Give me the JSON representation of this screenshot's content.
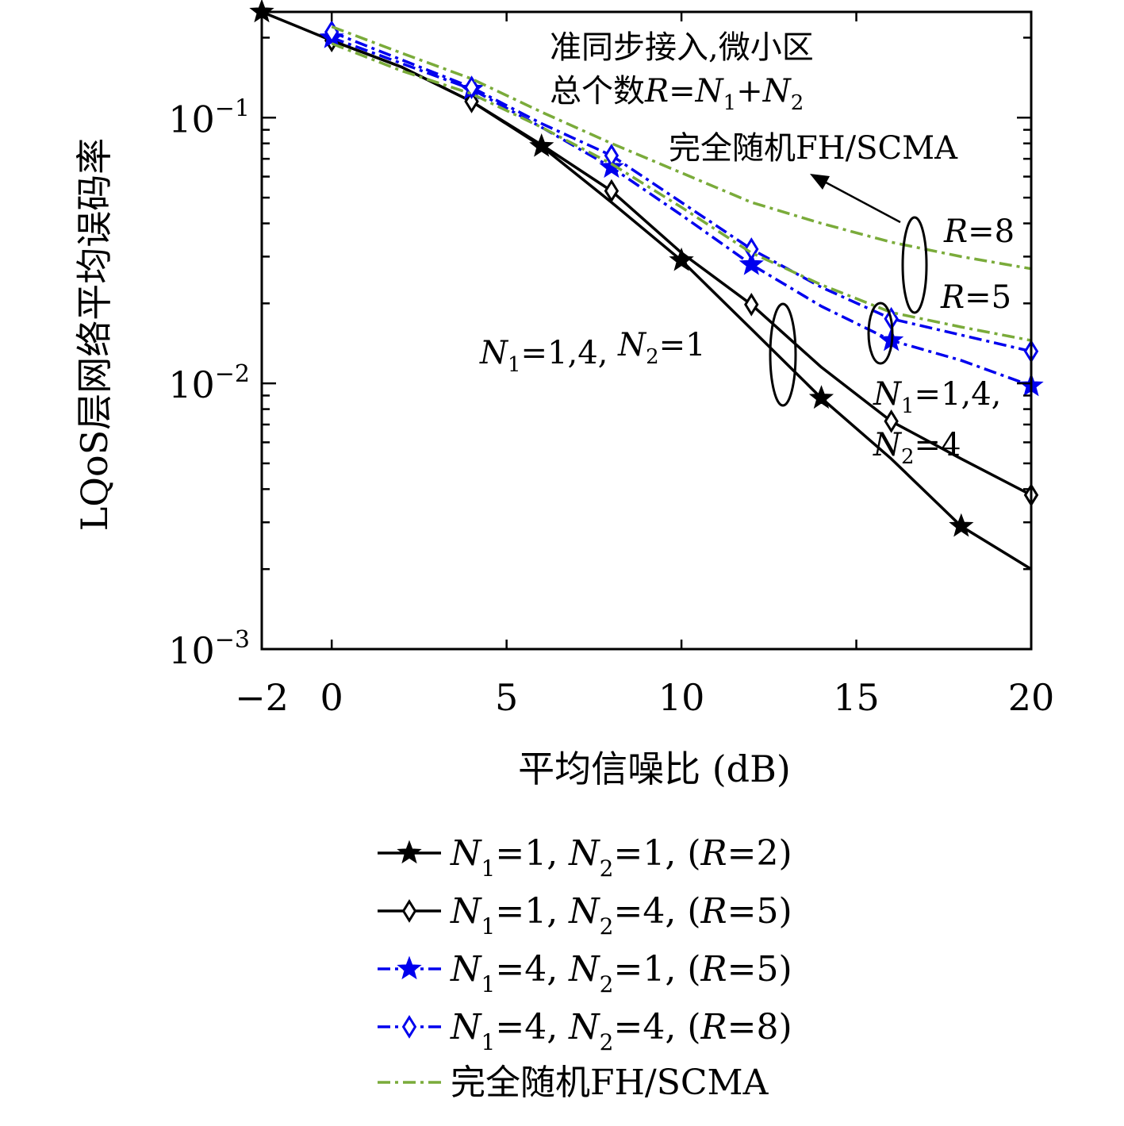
{
  "chart_data": {
    "type": "line",
    "xlabel": "平均信噪比 (dB)",
    "ylabel": "LQoS层网络平均误码率",
    "x_scale": "linear",
    "y_scale": "log",
    "xlim": [
      -2,
      20
    ],
    "ylim": [
      0.001,
      0.25
    ],
    "x_ticks": [
      {
        "value": -2,
        "label": "−2"
      },
      {
        "value": 0,
        "label": "0"
      },
      {
        "value": 5,
        "label": "5"
      },
      {
        "value": 10,
        "label": "10"
      },
      {
        "value": 15,
        "label": "15"
      },
      {
        "value": 20,
        "label": "20"
      }
    ],
    "y_ticks": [
      {
        "value": 0.1,
        "base": "10",
        "exp": "−1"
      },
      {
        "value": 0.01,
        "base": "10",
        "exp": "−2"
      },
      {
        "value": 0.001,
        "base": "10",
        "exp": "−3"
      }
    ],
    "grid": false,
    "legend_position": "below",
    "series": [
      {
        "label_parts": {
          "n1": "1",
          "n2": "1",
          "r": "2"
        },
        "color": "#000000",
        "dash": "solid",
        "marker": "star",
        "x": [
          -2,
          0,
          2,
          4,
          6,
          8,
          10,
          12,
          14,
          16,
          18,
          20
        ],
        "y": [
          0.25,
          0.195,
          0.155,
          0.115,
          0.078,
          0.048,
          0.029,
          0.016,
          0.0088,
          0.0052,
          0.0029,
          0.002
        ],
        "markers_at": [
          -2,
          6,
          10,
          14,
          18
        ]
      },
      {
        "label_parts": {
          "n1": "1",
          "n2": "4",
          "r": "5"
        },
        "color": "#000000",
        "dash": "solid",
        "marker": "diamond",
        "x": [
          0,
          2,
          4,
          6,
          8,
          10,
          12,
          14,
          16,
          18,
          20
        ],
        "y": [
          0.195,
          0.155,
          0.115,
          0.079,
          0.053,
          0.031,
          0.0198,
          0.0115,
          0.0072,
          0.0052,
          0.0038
        ],
        "markers_at": [
          0,
          4,
          8,
          12,
          16,
          20
        ]
      },
      {
        "label_parts": {
          "n1": "4",
          "n2": "1",
          "r": "5"
        },
        "color": "#0000ee",
        "dash": "dashdot",
        "marker": "star",
        "x": [
          0,
          2,
          4,
          6,
          8,
          10,
          12,
          14,
          16,
          18,
          20
        ],
        "y": [
          0.2,
          0.16,
          0.128,
          0.092,
          0.065,
          0.043,
          0.028,
          0.0195,
          0.0145,
          0.0122,
          0.0098
        ],
        "markers_at": [
          0,
          4,
          8,
          12,
          16,
          20
        ]
      },
      {
        "label_parts": {
          "n1": "4",
          "n2": "4",
          "r": "8"
        },
        "color": "#0000ee",
        "dash": "dashdot",
        "marker": "diamond",
        "x": [
          0,
          2,
          4,
          6,
          8,
          10,
          12,
          14,
          16,
          18,
          20
        ],
        "y": [
          0.21,
          0.165,
          0.13,
          0.095,
          0.072,
          0.048,
          0.032,
          0.023,
          0.0175,
          0.0152,
          0.0132
        ],
        "markers_at": [
          0,
          4,
          8,
          12,
          16,
          20
        ]
      },
      {
        "label": "完全随机FH/SCMA",
        "color": "#7aab3a",
        "dash": "dashdot",
        "marker": "none",
        "x": [
          0,
          2,
          4,
          6,
          8,
          10,
          12,
          14,
          16,
          18,
          20
        ],
        "y": [
          0.19,
          0.15,
          0.123,
          0.092,
          0.067,
          0.046,
          0.031,
          0.0235,
          0.0185,
          0.0163,
          0.0145
        ],
        "markers_at": []
      },
      {
        "label": "完全随机FH/SCMA",
        "color": "#7aab3a",
        "dash": "dashdot",
        "marker": "none",
        "x": [
          0,
          2,
          4,
          6,
          8,
          10,
          12,
          14,
          16,
          18,
          20
        ],
        "y": [
          0.22,
          0.175,
          0.14,
          0.105,
          0.08,
          0.062,
          0.048,
          0.04,
          0.034,
          0.03,
          0.027
        ],
        "markers_at": [],
        "in_legend": false
      }
    ],
    "annotations": {
      "top_line1": "准同步接入,微小区",
      "top_line2_prefix": "总个数",
      "scheme": "完全随机FH/SCMA",
      "r8": "R=8",
      "r5": "R=5",
      "n_ann_left": "N1=1,4, N2=1",
      "n_ann_right_1": "N1=1,4,",
      "n_ann_right_2": "N2=4"
    },
    "legend_tokens": {
      "n": "N",
      "r": "R",
      "sub1": "1",
      "sub2": "2",
      "eq": "=",
      "plus": "+",
      "comma": ",",
      "lparen": "(",
      "rparen": ")"
    }
  }
}
